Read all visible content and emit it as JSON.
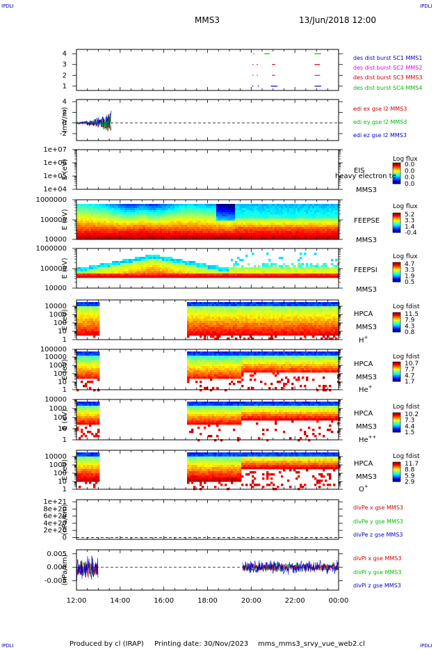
{
  "header": {
    "corner_tl": "IPDLI",
    "corner_tr": "IPDLI",
    "spacecraft": "MMS3",
    "datetime": "13/Jun/2018 12:00"
  },
  "footer": {
    "corner_bl": "IPDLI",
    "corner_br": "IPDLI",
    "producer": "Produced by cl (IRAP)",
    "printing_date": "Printing date: 30/Nov/2023",
    "script_name": "mms_mms3_srvy_vue_web2.cl"
  },
  "colors": {
    "blue": "#0000cc",
    "magenta": "#e000e0",
    "red": "#d00000",
    "green": "#00bb00"
  },
  "chart_data": {
    "type": "multi-panel time series and spectrograms",
    "x_ticks": [
      "12:00",
      "14:00",
      "16:00",
      "18:00",
      "20:00",
      "22:00",
      "00:00"
    ],
    "x_range_hours": [
      12,
      24
    ],
    "panels": [
      {
        "id": "burst",
        "y_ticks": [
          "4",
          "3",
          "2",
          "1"
        ],
        "y_range": [
          0.6,
          4.4
        ],
        "legend": [
          {
            "label": "des dist burst SC1 MMS1",
            "color": "#0000cc"
          },
          {
            "label": "des dist burst SC2 MMS2",
            "color": "#e000e0"
          },
          {
            "label": "des dist burst SC3 MMS3",
            "color": "#d00000"
          },
          {
            "label": "des dist burst SC4 MMS4",
            "color": "#00bb00"
          }
        ],
        "intervals": [
          {
            "level": 4,
            "color": "#00bb00",
            "spans": [
              [
                20.1,
                20.15
              ],
              [
                20.6,
                20.85
              ],
              [
                22.9,
                23.2
              ]
            ]
          },
          {
            "level": 3,
            "color": "#d00000",
            "spans": [
              [
                20.05,
                20.1
              ],
              [
                20.25,
                20.3
              ],
              [
                20.95,
                21.1
              ],
              [
                22.9,
                23.15
              ]
            ]
          },
          {
            "level": 2,
            "color": "#e000e0",
            "spans": [
              [
                20.05,
                20.1
              ],
              [
                20.25,
                20.3
              ],
              [
                20.95,
                21.1
              ],
              [
                22.9,
                23.15
              ]
            ]
          },
          {
            "level": 1,
            "color": "#0000cc",
            "spans": [
              [
                20.05,
                20.1
              ],
              [
                20.3,
                20.35
              ],
              [
                20.9,
                21.2
              ],
              [
                22.9,
                23.2
              ]
            ]
          }
        ]
      },
      {
        "id": "edi",
        "ylabel": "(mV/m)",
        "y_ticks": [
          "4",
          "2",
          "0",
          "-2"
        ],
        "y_range": [
          -3.3,
          4.4
        ],
        "legend": [
          {
            "label": "edi ex gse l2 MMS3",
            "color": "#d00000"
          },
          {
            "label": "edi ey gse l2 MMS3",
            "color": "#00bb00"
          },
          {
            "label": "edi ez gse l2 MMS3",
            "color": "#0000cc"
          }
        ],
        "data_interval_hours": [
          12.0,
          13.6
        ]
      },
      {
        "id": "eis",
        "ylabel": "E (eV)",
        "y_ticks": [
          "1e+07",
          "1e+06",
          "1e+05",
          "1e+04"
        ],
        "scale": "log",
        "inst_label": "EIS",
        "sc_label": "MMS3",
        "overlay_text": "heavy electron te",
        "colorbar": {
          "title": "Log flux",
          "ticks": [
            "0.0",
            "0.0",
            "0.0",
            "0.0"
          ]
        }
      },
      {
        "id": "feeps_e",
        "ylabel": "E (eV)",
        "y_ticks": [
          "1000000",
          "100000",
          "10000"
        ],
        "scale": "log",
        "inst_label": "FEEPSE",
        "sc_label": "MMS3",
        "colorbar": {
          "title": "Log flux",
          "ticks": [
            "5.2",
            "3.3",
            "1.4",
            "-0.4"
          ]
        }
      },
      {
        "id": "feeps_i",
        "ylabel": "E (eV)",
        "y_ticks": [
          "1000000",
          "100000",
          "10000"
        ],
        "scale": "log",
        "inst_label": "FEEPSI",
        "sc_label": "MMS3",
        "colorbar": {
          "title": "Log flux",
          "ticks": [
            "4.7",
            "3.3",
            "1.9",
            "0.5"
          ]
        }
      },
      {
        "id": "hpca_h",
        "ylabel": "E (eV)",
        "y_ticks": [
          "10000",
          "1000",
          "100",
          "10",
          "1"
        ],
        "scale": "log",
        "inst_label": "HPCA",
        "sc_label": "MMS3",
        "species": "H",
        "species_sup": "+",
        "data_gaps_hours": [
          [
            13.1,
            17.1
          ]
        ],
        "colorbar": {
          "title": "Log fdist",
          "ticks": [
            "11.5",
            "7.9",
            "4.3",
            "0.8"
          ]
        }
      },
      {
        "id": "hpca_he",
        "ylabel": "E (eV)",
        "y_ticks": [
          "100000",
          "10000",
          "1000",
          "100",
          "10",
          "1"
        ],
        "scale": "log",
        "inst_label": "HPCA",
        "sc_label": "MMS3",
        "species": "He",
        "species_sup": "+",
        "data_gaps_hours": [
          [
            13.1,
            17.1
          ]
        ],
        "colorbar": {
          "title": "Log fdist",
          "ticks": [
            "10.7",
            "7.7",
            "4.7",
            "1.7"
          ]
        }
      },
      {
        "id": "hpca_hepp",
        "ylabel": "E (eV)",
        "y_ticks": [
          "10000",
          "1000",
          "100",
          "10",
          "1"
        ],
        "scale": "log",
        "inst_label": "HPCA",
        "sc_label": "MMS3",
        "species": "He",
        "species_sup": "++",
        "data_gaps_hours": [
          [
            13.1,
            17.1
          ]
        ],
        "colorbar": {
          "title": "Log fdist",
          "ticks": [
            "10.2",
            "7.3",
            "4.4",
            "1.5"
          ]
        }
      },
      {
        "id": "hpca_o",
        "ylabel": "E (eV)",
        "y_ticks": [
          "10000",
          "1000",
          "100",
          "10",
          "1"
        ],
        "scale": "log",
        "inst_label": "HPCA",
        "sc_label": "MMS3",
        "species": "O",
        "species_sup": "+",
        "data_gaps_hours": [
          [
            13.1,
            17.1
          ]
        ],
        "colorbar": {
          "title": "Log fdist",
          "ticks": [
            "11.7",
            "8.8",
            "5.9",
            "2.9"
          ]
        }
      },
      {
        "id": "divpe",
        "ylabel": "(nPa/km)",
        "y_ticks": [
          "1e+21",
          "8e+20",
          "6e+20",
          "4e+20",
          "2e+20",
          "0"
        ],
        "y_range": [
          -5e+19,
          1.06e+21
        ],
        "legend": [
          {
            "label": "divPe x gse MMS3",
            "color": "#d00000"
          },
          {
            "label": "divPe y gse MMS3",
            "color": "#00bb00"
          },
          {
            "label": "divPe z gse MMS3",
            "color": "#0000cc"
          }
        ]
      },
      {
        "id": "divpi",
        "ylabel": "(nPa/km)",
        "y_ticks": [
          "0.005",
          "0.000",
          "-0.005"
        ],
        "y_range": [
          -0.0085,
          0.0065
        ],
        "legend": [
          {
            "label": "divPi x gse MMS3",
            "color": "#d00000"
          },
          {
            "label": "divPi y gse MMS3",
            "color": "#00bb00"
          },
          {
            "label": "divPi z gse MMS3",
            "color": "#0000cc"
          }
        ],
        "data_intervals_hours": [
          [
            12.0,
            13.0
          ],
          [
            19.6,
            24.0
          ]
        ]
      }
    ]
  }
}
